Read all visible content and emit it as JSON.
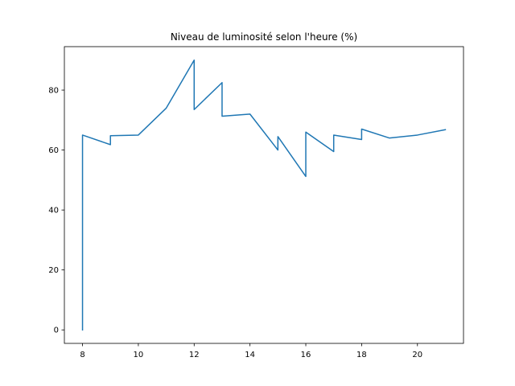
{
  "chart_data": {
    "type": "line",
    "title": "Niveau de luminosité selon l'heure (%)",
    "xlabel": "",
    "ylabel": "",
    "xlim": [
      7.35,
      21.65
    ],
    "ylim": [
      -4.5,
      94.5
    ],
    "xticks": [
      "8",
      "10",
      "12",
      "14",
      "16",
      "18",
      "20"
    ],
    "yticks": [
      "0",
      "20",
      "40",
      "60",
      "80"
    ],
    "grid": false,
    "series": [
      {
        "x": [
          8,
          8,
          9,
          9,
          10,
          11,
          12,
          12,
          13,
          13,
          14,
          15,
          15,
          16,
          16,
          17,
          17,
          18,
          18,
          19,
          20,
          21
        ],
        "y": [
          0,
          65,
          61.8,
          64.8,
          65,
          74,
          90,
          73.5,
          82.5,
          71.3,
          72,
          60,
          64.5,
          51.2,
          66,
          59.5,
          65,
          63.5,
          67,
          64,
          65,
          66.8
        ],
        "color": "#1f77b4"
      }
    ]
  }
}
